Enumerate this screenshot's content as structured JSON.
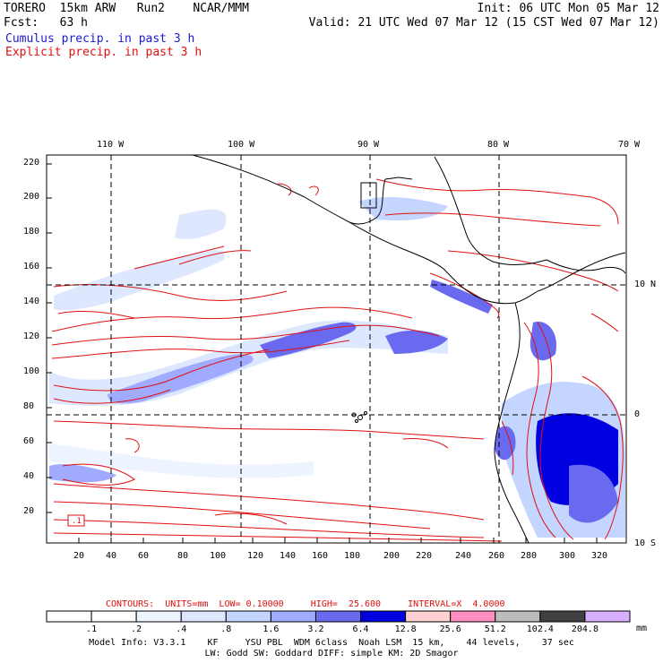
{
  "header": {
    "line1_left": "TORERO  15km ARW   Run2    NCAR/MMM",
    "line1_right": "Init: 06 UTC Mon 05 Mar 12",
    "line2_left": "Fcst:   63 h",
    "line2_right": "Valid: 21 UTC Wed 07 Mar 12 (15 CST Wed 07 Mar 12)",
    "field1": "Cumulus precip. in past 3 h",
    "field2": "Explicit precip. in past 3 h"
  },
  "map": {
    "lon_labels": [
      "110 W",
      "100 W",
      "90 W",
      "80 W",
      "70 W"
    ],
    "lat_labels": [
      "10 N",
      "0",
      "10 S"
    ],
    "y_ticks": [
      "220",
      "200",
      "180",
      "160",
      "140",
      "120",
      "100",
      "80",
      "60",
      "40",
      "20"
    ],
    "x_ticks": [
      "20",
      "40",
      "60",
      "80",
      "100",
      "120",
      "140",
      "160",
      "180",
      "200",
      "220",
      "240",
      "260",
      "280",
      "300",
      "320"
    ],
    "box_label": ".1"
  },
  "contours": {
    "text": "CONTOURS:  UNITS=mm  LOW= 0.10000     HIGH=  25.600     INTERVAL=X  4.0000"
  },
  "colorbar": {
    "unit": "mm",
    "labels": [
      ".1",
      ".2",
      ".4",
      ".8",
      "1.6",
      "3.2",
      "6.4",
      "12.8",
      "25.6",
      "51.2",
      "102.4",
      "204.8"
    ],
    "colors": [
      "#ffffff",
      "#ffffff",
      "#eef4ff",
      "#dde8ff",
      "#c4d6ff",
      "#a0aaff",
      "#6a6af0",
      "#0000e0",
      "#ffd0d0",
      "#ff90c0",
      "#bcbcbc",
      "#404040",
      "#d8b0ff"
    ]
  },
  "footer": {
    "line1": "Model Info: V3.3.1    KF     YSU PBL  WDM 6class  Noah LSM  15 km,    44 levels,    37 sec",
    "line2": "LW: Godd SW: Goddard DIFF: simple KM: 2D Smagor"
  }
}
